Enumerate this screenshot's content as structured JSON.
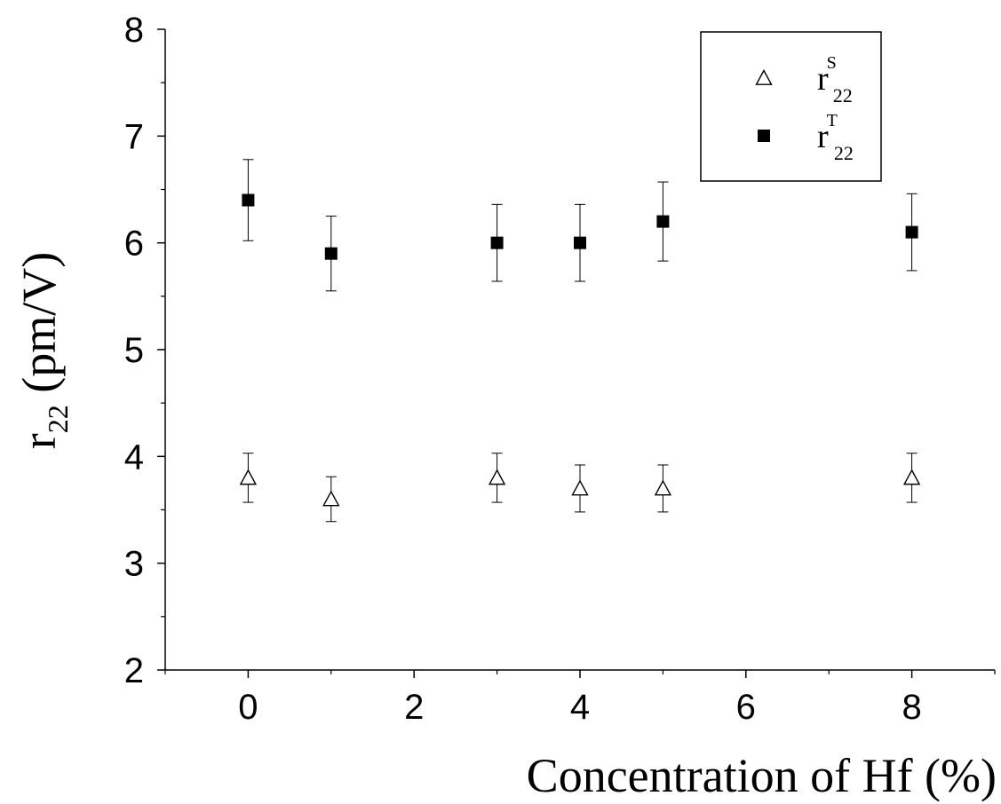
{
  "chart_data": {
    "type": "scatter",
    "xlabel": "Concentration of Hf (%)",
    "ylabel": {
      "base": "r",
      "subscript": "22",
      "rest": " (pm/V)"
    },
    "xlim": [
      -1,
      9
    ],
    "ylim": [
      2,
      8
    ],
    "x_ticks": [
      0,
      2,
      4,
      6,
      8
    ],
    "y_ticks": [
      2,
      3,
      4,
      5,
      6,
      7,
      8
    ],
    "grid": false,
    "legend_position": "top-right",
    "series": [
      {
        "name": {
          "base": "r",
          "superscript": "S",
          "subscript": "22"
        },
        "marker": "open-triangle",
        "color": "#000000",
        "points": [
          {
            "x": 0,
            "y": 3.8,
            "err": 0.23
          },
          {
            "x": 1,
            "y": 3.6,
            "err": 0.21
          },
          {
            "x": 3,
            "y": 3.8,
            "err": 0.23
          },
          {
            "x": 4,
            "y": 3.7,
            "err": 0.22
          },
          {
            "x": 5,
            "y": 3.7,
            "err": 0.22
          },
          {
            "x": 8,
            "y": 3.8,
            "err": 0.23
          }
        ]
      },
      {
        "name": {
          "base": "r",
          "superscript": "T",
          "subscript": "22"
        },
        "marker": "filled-square",
        "color": "#000000",
        "points": [
          {
            "x": 0,
            "y": 6.4,
            "err": 0.38
          },
          {
            "x": 1,
            "y": 5.9,
            "err": 0.35
          },
          {
            "x": 3,
            "y": 6.0,
            "err": 0.36
          },
          {
            "x": 4,
            "y": 6.0,
            "err": 0.36
          },
          {
            "x": 5,
            "y": 6.2,
            "err": 0.37
          },
          {
            "x": 8,
            "y": 6.1,
            "err": 0.36
          }
        ]
      }
    ]
  }
}
